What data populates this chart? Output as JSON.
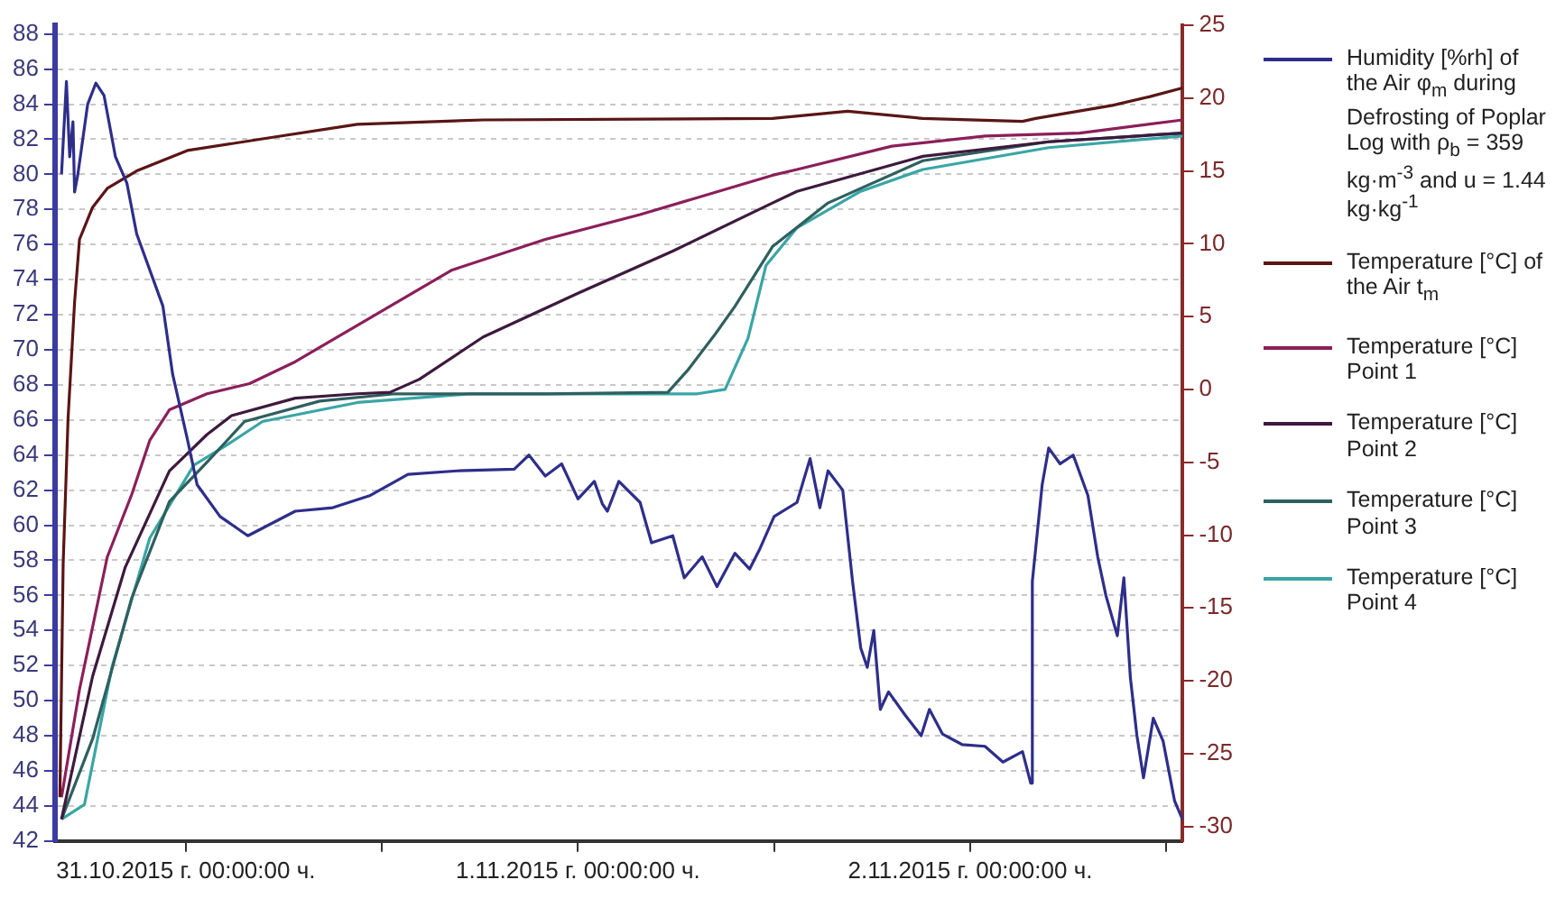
{
  "chart_data": {
    "type": "line",
    "marker": "none",
    "line_style": "solid",
    "grid": "y",
    "legend": "right",
    "xlim": [
      "2015-10-30T16:00",
      "2015-11-02T13:00"
    ],
    "xticks": [
      {
        "value": "2015-10-31T00:00",
        "label": "31.10.2015 г. 00:00:00 ч."
      },
      {
        "value": "2015-10-31T12:00",
        "label": null
      },
      {
        "value": "2015-11-01T00:00",
        "label": "1.11.2015 г. 00:00:00 ч."
      },
      {
        "value": "2015-11-01T12:00",
        "label": null
      },
      {
        "value": "2015-11-02T00:00",
        "label": "2.11.2015 г. 00:00:00 ч."
      },
      {
        "value": "2015-11-02T12:00",
        "label": null
      }
    ],
    "ylim": [
      42,
      88.5
    ],
    "yticks": [
      42,
      44,
      46,
      48,
      50,
      52,
      54,
      56,
      58,
      60,
      62,
      64,
      66,
      68,
      70,
      72,
      74,
      76,
      78,
      80,
      82,
      84,
      86,
      88
    ],
    "y2lim": [
      -31,
      25
    ],
    "y2ticks": [
      -30,
      -25,
      -20,
      -15,
      -10,
      -5,
      0,
      5,
      10,
      15,
      20,
      25
    ],
    "series": [
      {
        "name": "Humidity [%rh] of the Air φ$_{m}$ during Defrosting of Poplar Log with ρ$_{b}$ = 359 kg·m$^{-3}$ and u = 1.44 kg·kg$^{-1}$",
        "color": "#2e2e8a",
        "x": [
          "2015-10-30T16:24",
          "2015-10-30T16:42",
          "2015-10-30T16:54",
          "2015-10-30T17:06",
          "2015-10-30T17:12",
          "2015-10-30T17:24",
          "2015-10-30T17:42",
          "2015-10-30T18:00",
          "2015-10-30T18:30",
          "2015-10-30T19:00",
          "2015-10-30T19:42",
          "2015-10-30T20:24",
          "2015-10-30T21:00",
          "2015-10-30T22:36",
          "2015-10-30T23:12",
          "2015-10-31T00:06",
          "2015-10-31T00:42",
          "2015-10-31T02:06",
          "2015-10-31T03:48",
          "2015-10-31T06:42",
          "2015-10-31T09:00",
          "2015-10-31T11:18",
          "2015-10-31T13:36",
          "2015-10-31T16:36",
          "2015-10-31T20:06",
          "2015-10-31T21:00",
          "2015-10-31T22:00",
          "2015-10-31T23:00",
          "2015-11-01T00:00",
          "2015-11-01T01:00",
          "2015-11-01T01:30",
          "2015-11-01T01:48",
          "2015-11-01T02:30",
          "2015-11-01T03:48",
          "2015-11-01T04:30",
          "2015-11-01T05:48",
          "2015-11-01T06:30",
          "2015-11-01T07:36",
          "2015-11-01T08:30",
          "2015-11-01T09:36",
          "2015-11-01T10:30",
          "2015-11-01T11:06",
          "2015-11-01T12:00",
          "2015-11-01T13:24",
          "2015-11-01T14:12",
          "2015-11-01T14:48",
          "2015-11-01T15:18",
          "2015-11-01T16:12",
          "2015-11-01T16:48",
          "2015-11-01T17:18",
          "2015-11-01T17:42",
          "2015-11-01T18:06",
          "2015-11-01T18:30",
          "2015-11-01T19:00",
          "2015-11-01T20:00",
          "2015-11-01T21:00",
          "2015-11-01T21:30",
          "2015-11-01T22:18",
          "2015-11-01T23:30",
          "2015-11-02T00:54",
          "2015-11-02T02:00",
          "2015-11-02T03:12",
          "2015-11-02T03:42",
          "2015-11-02T03:48",
          "2015-11-02T04:24",
          "2015-11-02T04:48",
          "2015-11-02T05:30",
          "2015-11-02T06:18",
          "2015-11-02T07:12",
          "2015-11-02T07:48",
          "2015-11-02T08:18",
          "2015-11-02T09:00",
          "2015-11-02T09:24",
          "2015-11-02T09:48",
          "2015-11-02T10:12",
          "2015-11-02T10:36",
          "2015-11-02T11:12",
          "2015-11-02T11:48",
          "2015-11-02T12:30",
          "2015-11-02T13:00"
        ],
        "values": [
          80,
          85.3,
          81,
          83,
          79,
          80,
          82,
          84,
          85.2,
          84.5,
          81,
          79.5,
          76.6,
          72.5,
          68.6,
          64.9,
          62.3,
          60.5,
          59.4,
          60.8,
          61,
          61.7,
          62.9,
          63.1,
          63.2,
          64,
          62.8,
          63.5,
          61.5,
          62.5,
          61.2,
          60.8,
          62.5,
          61.3,
          59,
          59.4,
          57,
          58.2,
          56.5,
          58.4,
          57.5,
          58.6,
          60.5,
          61.3,
          63.8,
          61,
          63.1,
          62,
          56.8,
          53,
          51.9,
          54,
          49.5,
          50.5,
          49.2,
          48,
          49.5,
          48.1,
          47.5,
          47.4,
          46.5,
          47.1,
          45.3,
          56.8,
          62.3,
          64.4,
          63.5,
          64,
          61.7,
          58.2,
          56,
          53.7,
          57,
          51.3,
          48,
          45.6,
          49,
          47.7,
          44.3,
          43.2
        ]
      },
      {
        "name": "Temperature [°C] of the Air t$_{m}$",
        "color": "#5a1515",
        "axis": "y2",
        "x": [
          "2015-10-30T16:18",
          "2015-10-30T16:30",
          "2015-10-30T16:48",
          "2015-10-30T17:12",
          "2015-10-30T17:30",
          "2015-10-30T18:18",
          "2015-10-30T19:12",
          "2015-10-30T21:00",
          "2015-10-31T00:06",
          "2015-10-31T04:42",
          "2015-10-31T10:30",
          "2015-10-31T18:12",
          "2015-11-01T11:54",
          "2015-11-01T16:30",
          "2015-11-01T21:06",
          "2015-11-02T03:12",
          "2015-11-02T04:00",
          "2015-11-02T08:42",
          "2015-11-02T11:00",
          "2015-11-02T13:00"
        ],
        "values": [
          -28,
          -12,
          -2,
          6,
          10.3,
          12.5,
          13.8,
          15,
          16.4,
          17.2,
          18.2,
          18.5,
          18.6,
          19.1,
          18.6,
          18.4,
          18.6,
          19.5,
          20.1,
          20.7
        ]
      },
      {
        "name": "Temperature [°C] Point 1",
        "color": "#8b1f5a",
        "axis": "y2",
        "x": [
          "2015-10-30T16:24",
          "2015-10-30T17:30",
          "2015-10-30T19:12",
          "2015-10-30T20:42",
          "2015-10-30T21:48",
          "2015-10-30T23:00",
          "2015-10-31T01:18",
          "2015-10-31T02:48",
          "2015-10-31T03:54",
          "2015-10-31T06:42",
          "2015-10-31T10:30",
          "2015-10-31T16:18",
          "2015-10-31T22:00",
          "2015-11-01T03:48",
          "2015-11-01T11:54",
          "2015-11-01T13:24",
          "2015-11-01T19:12",
          "2015-11-02T00:54",
          "2015-11-02T06:42",
          "2015-11-02T13:00"
        ],
        "values": [
          -28,
          -20.6,
          -11.5,
          -7.2,
          -3.5,
          -1.4,
          -0.3,
          0.1,
          0.4,
          1.9,
          4.4,
          8.2,
          10.3,
          12,
          14.7,
          15.1,
          16.7,
          17.4,
          17.6,
          18.5
        ]
      },
      {
        "name": "Temperature [°C] Point 2",
        "color": "#3d1a3d",
        "axis": "y2",
        "x": [
          "2015-10-30T16:24",
          "2015-10-30T18:18",
          "2015-10-30T20:18",
          "2015-10-30T23:00",
          "2015-10-31T01:18",
          "2015-10-31T02:48",
          "2015-10-31T06:42",
          "2015-10-31T10:30",
          "2015-10-31T12:30",
          "2015-10-31T14:18",
          "2015-10-31T18:12",
          "2015-11-01T00:00",
          "2015-11-01T05:48",
          "2015-11-01T11:54",
          "2015-11-01T13:24",
          "2015-11-01T21:06",
          "2015-11-02T04:48",
          "2015-11-02T13:00"
        ],
        "values": [
          -29.5,
          -19.7,
          -12.2,
          -5.6,
          -3.1,
          -1.8,
          -0.6,
          -0.3,
          -0.2,
          0.7,
          3.6,
          6.6,
          9.5,
          12.8,
          13.6,
          16,
          17,
          17.6
        ]
      },
      {
        "name": "Temperature [°C] Point 3",
        "color": "#2f5f5f",
        "axis": "y2",
        "x": [
          "2015-10-30T16:24",
          "2015-10-30T18:18",
          "2015-10-30T20:42",
          "2015-10-30T23:00",
          "2015-10-31T01:18",
          "2015-10-31T03:36",
          "2015-10-31T08:12",
          "2015-10-31T12:48",
          "2015-10-31T22:00",
          "2015-11-01T05:30",
          "2015-11-01T06:42",
          "2015-11-01T08:24",
          "2015-11-01T09:36",
          "2015-11-01T11:54",
          "2015-11-01T15:18",
          "2015-11-01T21:06",
          "2015-11-02T04:48",
          "2015-11-02T13:00"
        ],
        "values": [
          -29.5,
          -24,
          -14.3,
          -7.7,
          -5,
          -2.2,
          -0.8,
          -0.3,
          -0.3,
          -0.2,
          1.3,
          3.8,
          5.7,
          9.8,
          12.8,
          15.7,
          17,
          17.6
        ]
      },
      {
        "name": "Temperature [°C] Point 4",
        "color": "#3aa5a5",
        "axis": "y2",
        "x": [
          "2015-10-30T16:24",
          "2015-10-30T17:48",
          "2015-10-30T19:30",
          "2015-10-30T21:48",
          "2015-10-31T00:30",
          "2015-10-31T02:24",
          "2015-10-31T04:42",
          "2015-10-31T10:30",
          "2015-10-31T17:24",
          "2015-11-01T07:18",
          "2015-11-01T09:00",
          "2015-11-01T10:24",
          "2015-11-01T11:30",
          "2015-11-01T13:24",
          "2015-11-01T17:18",
          "2015-11-01T21:06",
          "2015-11-02T04:48",
          "2015-11-02T13:00"
        ],
        "values": [
          -29.5,
          -28.5,
          -19,
          -10.2,
          -5.2,
          -3.9,
          -2.2,
          -0.9,
          -0.3,
          -0.3,
          0,
          3.5,
          8.5,
          11.1,
          13.6,
          15.1,
          16.6,
          17.4
        ]
      }
    ]
  }
}
